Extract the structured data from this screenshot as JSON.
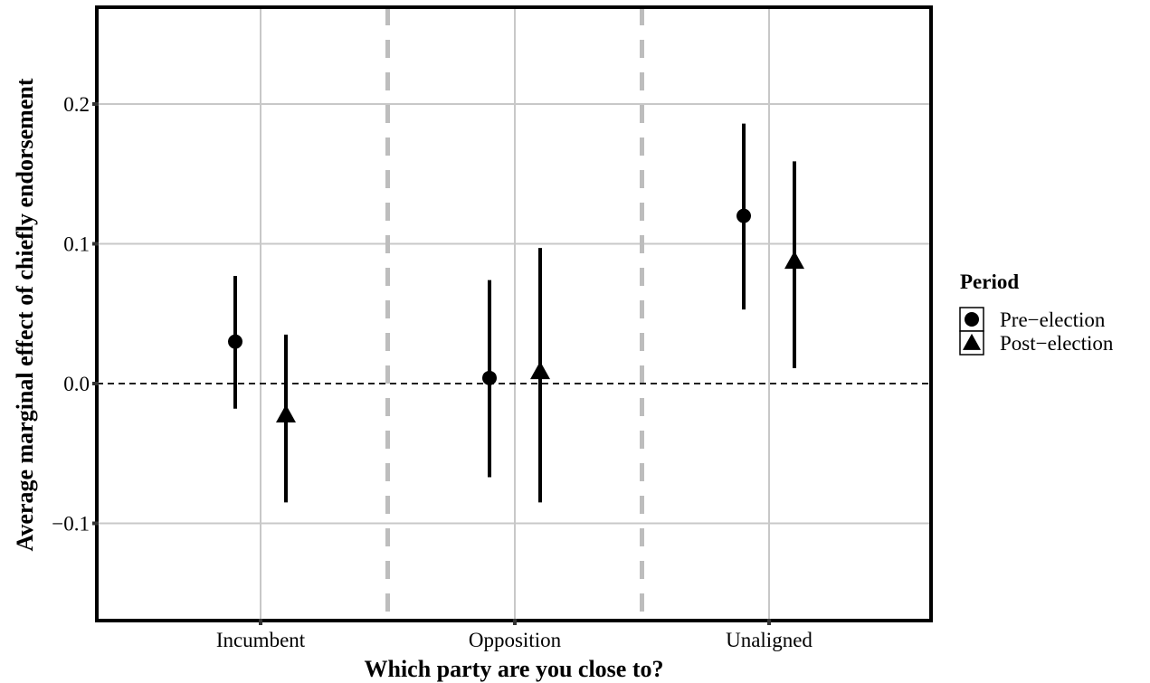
{
  "chart_data": {
    "type": "scatter",
    "title": "",
    "xlabel": "Which party are you close to?",
    "ylabel": "Average marginal effect of chiefly endorsement",
    "categories": [
      "Incumbent",
      "Opposition",
      "Unaligned"
    ],
    "ylim": [
      -0.17,
      0.27
    ],
    "yticks": [
      -0.1,
      0.0,
      0.1,
      0.2
    ],
    "ytick_labels": [
      "−0.1",
      "0.0",
      "0.1",
      "0.2"
    ],
    "grid": true,
    "reference_line": {
      "y": 0.0,
      "style": "dashed"
    },
    "group_separators": "dashed-gray",
    "legend": {
      "title": "Period",
      "placement": "right"
    },
    "series": [
      {
        "name": "Pre−election",
        "marker": "circle",
        "values": [
          0.03,
          0.004,
          0.12
        ],
        "lower": [
          -0.018,
          -0.067,
          0.053
        ],
        "upper": [
          0.077,
          0.074,
          0.186
        ]
      },
      {
        "name": "Post−election",
        "marker": "triangle",
        "values": [
          -0.023,
          0.008,
          0.087
        ],
        "lower": [
          -0.085,
          -0.085,
          0.011
        ],
        "upper": [
          0.035,
          0.097,
          0.159
        ]
      }
    ],
    "colors": {
      "points": "#000000",
      "grid": "#c8c8c8",
      "separator": "#bdbdbd"
    }
  }
}
